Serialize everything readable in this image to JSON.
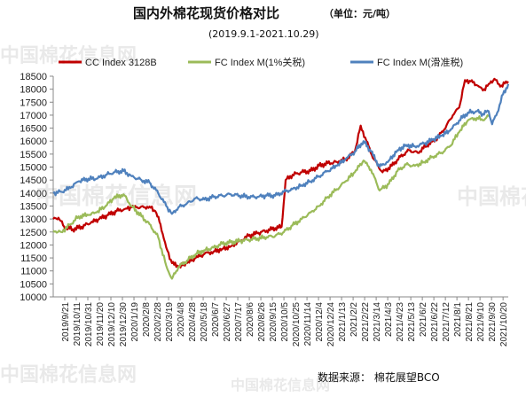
{
  "header": {
    "title": "国内外棉花现货价格对比",
    "unit": "（单位：元/吨）",
    "date_range": "(2019.9.1-2021.10.29)"
  },
  "footer": {
    "source": "数据来源：  棉花展望BCO"
  },
  "watermark": {
    "text": "中国棉花信息网"
  },
  "chart_data": {
    "type": "line",
    "ylim": [
      10000,
      18500
    ],
    "yticks": [
      10000,
      10500,
      11000,
      11500,
      12000,
      12500,
      13000,
      13500,
      14000,
      14500,
      15000,
      15500,
      16000,
      16500,
      17000,
      17500,
      18000,
      18500
    ],
    "xlim": [
      "2019-09-01",
      "2021-10-29"
    ],
    "xtick_labels": [
      "2019/9/21",
      "2019/10/11",
      "2019/10/31",
      "2019/11/20",
      "2019/12/10",
      "2019/12/30",
      "2020/1/19",
      "2020/2/8",
      "2020/2/28",
      "2020/3/19",
      "2020/4/8",
      "2020/4/28",
      "2020/5/18",
      "2020/6/7",
      "2020/6/27",
      "2020/7/17",
      "2020/8/6",
      "2020/8/26",
      "2020/9/15",
      "2020/10/5",
      "2020/10/25",
      "2020/11/14",
      "2020/12/4",
      "2020/12/24",
      "2021/1/13",
      "2021/2/2",
      "2021/2/22",
      "2021/3/14",
      "2021/4/3",
      "2021/4/23",
      "2021/5/13",
      "2021/6/2",
      "2021/6/22",
      "2021/7/12",
      "2021/8/1",
      "2021/8/21",
      "2021/9/10",
      "2021/9/30",
      "2021/10/20"
    ],
    "grid": false,
    "legend_position": "top",
    "series": [
      {
        "name": "CC Index 3128B",
        "color": "#c00000",
        "points": [
          [
            "2019-09-01",
            13000
          ],
          [
            "2019-09-10",
            13050
          ],
          [
            "2019-09-20",
            12700
          ],
          [
            "2019-10-05",
            12600
          ],
          [
            "2019-10-20",
            12700
          ],
          [
            "2019-11-05",
            12850
          ],
          [
            "2019-11-20",
            13000
          ],
          [
            "2019-12-05",
            13150
          ],
          [
            "2019-12-20",
            13300
          ],
          [
            "2020-01-05",
            13400
          ],
          [
            "2020-01-15",
            13450
          ],
          [
            "2020-01-25",
            13450
          ],
          [
            "2020-02-05",
            13450
          ],
          [
            "2020-02-15",
            13480
          ],
          [
            "2020-02-25",
            13300
          ],
          [
            "2020-03-05",
            12800
          ],
          [
            "2020-03-15",
            11900
          ],
          [
            "2020-03-25",
            11300
          ],
          [
            "2020-04-05",
            11150
          ],
          [
            "2020-04-20",
            11300
          ],
          [
            "2020-05-05",
            11500
          ],
          [
            "2020-05-20",
            11650
          ],
          [
            "2020-06-05",
            11750
          ],
          [
            "2020-06-20",
            11850
          ],
          [
            "2020-07-05",
            11950
          ],
          [
            "2020-07-20",
            12150
          ],
          [
            "2020-08-05",
            12350
          ],
          [
            "2020-08-20",
            12450
          ],
          [
            "2020-09-05",
            12550
          ],
          [
            "2020-09-20",
            12650
          ],
          [
            "2020-10-01",
            12700
          ],
          [
            "2020-10-08",
            14500
          ],
          [
            "2020-10-20",
            14700
          ],
          [
            "2020-11-05",
            14800
          ],
          [
            "2020-11-20",
            14850
          ],
          [
            "2020-12-05",
            15050
          ],
          [
            "2020-12-20",
            15150
          ],
          [
            "2021-01-05",
            15200
          ],
          [
            "2021-01-20",
            15300
          ],
          [
            "2021-02-05",
            15600
          ],
          [
            "2021-02-15",
            16600
          ],
          [
            "2021-02-25",
            16000
          ],
          [
            "2021-03-10",
            15300
          ],
          [
            "2021-03-25",
            14800
          ],
          [
            "2021-04-10",
            15050
          ],
          [
            "2021-04-25",
            15400
          ],
          [
            "2021-05-10",
            15650
          ],
          [
            "2021-05-25",
            15550
          ],
          [
            "2021-06-10",
            15850
          ],
          [
            "2021-06-25",
            16050
          ],
          [
            "2021-07-10",
            16450
          ],
          [
            "2021-07-25",
            17000
          ],
          [
            "2021-08-05",
            17300
          ],
          [
            "2021-08-15",
            18350
          ],
          [
            "2021-08-25",
            18300
          ],
          [
            "2021-09-05",
            18150
          ],
          [
            "2021-09-15",
            17950
          ],
          [
            "2021-09-25",
            18200
          ],
          [
            "2021-10-05",
            18400
          ],
          [
            "2021-10-15",
            18100
          ],
          [
            "2021-10-29",
            18300
          ]
        ]
      },
      {
        "name": "FC Index M(1%关税)",
        "color": "#9bbb59",
        "points": [
          [
            "2019-09-01",
            12550
          ],
          [
            "2019-09-15",
            12500
          ],
          [
            "2019-10-01",
            12800
          ],
          [
            "2019-10-15",
            13100
          ],
          [
            "2019-11-01",
            13150
          ],
          [
            "2019-11-15",
            13250
          ],
          [
            "2019-12-01",
            13500
          ],
          [
            "2019-12-15",
            13800
          ],
          [
            "2020-01-01",
            13950
          ],
          [
            "2020-01-15",
            13500
          ],
          [
            "2020-02-01",
            13100
          ],
          [
            "2020-02-15",
            12800
          ],
          [
            "2020-03-01",
            12300
          ],
          [
            "2020-03-15",
            11200
          ],
          [
            "2020-03-25",
            10700
          ],
          [
            "2020-04-05",
            11150
          ],
          [
            "2020-04-20",
            11400
          ],
          [
            "2020-05-05",
            11650
          ],
          [
            "2020-05-20",
            11800
          ],
          [
            "2020-06-05",
            11900
          ],
          [
            "2020-06-20",
            12050
          ],
          [
            "2020-07-05",
            12100
          ],
          [
            "2020-07-20",
            12150
          ],
          [
            "2020-08-05",
            12200
          ],
          [
            "2020-08-20",
            12250
          ],
          [
            "2020-09-05",
            12300
          ],
          [
            "2020-09-20",
            12350
          ],
          [
            "2020-10-05",
            12500
          ],
          [
            "2020-10-20",
            12750
          ],
          [
            "2020-11-05",
            13000
          ],
          [
            "2020-11-20",
            13250
          ],
          [
            "2020-12-05",
            13500
          ],
          [
            "2020-12-20",
            13850
          ],
          [
            "2021-01-05",
            14150
          ],
          [
            "2021-01-20",
            14450
          ],
          [
            "2021-02-05",
            14800
          ],
          [
            "2021-02-20",
            15250
          ],
          [
            "2021-03-05",
            14900
          ],
          [
            "2021-03-20",
            14100
          ],
          [
            "2021-04-05",
            14350
          ],
          [
            "2021-04-20",
            14850
          ],
          [
            "2021-05-05",
            15100
          ],
          [
            "2021-05-20",
            15050
          ],
          [
            "2021-06-05",
            15200
          ],
          [
            "2021-06-20",
            15400
          ],
          [
            "2021-07-05",
            15550
          ],
          [
            "2021-07-20",
            15800
          ],
          [
            "2021-08-05",
            16350
          ],
          [
            "2021-08-20",
            16800
          ],
          [
            "2021-09-05",
            16900
          ],
          [
            "2021-09-15",
            16800
          ],
          [
            "2021-09-25",
            16950
          ]
        ]
      },
      {
        "name": "FC Index M(滑准税)",
        "color": "#4f81bd",
        "points": [
          [
            "2019-09-01",
            14000
          ],
          [
            "2019-09-15",
            14050
          ],
          [
            "2019-10-01",
            14200
          ],
          [
            "2019-10-15",
            14450
          ],
          [
            "2019-11-01",
            14550
          ],
          [
            "2019-11-15",
            14550
          ],
          [
            "2019-12-01",
            14700
          ],
          [
            "2019-12-15",
            14800
          ],
          [
            "2020-01-01",
            14850
          ],
          [
            "2020-01-15",
            14650
          ],
          [
            "2020-02-01",
            14500
          ],
          [
            "2020-02-15",
            14400
          ],
          [
            "2020-03-01",
            14000
          ],
          [
            "2020-03-15",
            13500
          ],
          [
            "2020-03-25",
            13200
          ],
          [
            "2020-04-05",
            13450
          ],
          [
            "2020-04-20",
            13600
          ],
          [
            "2020-05-05",
            13800
          ],
          [
            "2020-05-20",
            13750
          ],
          [
            "2020-06-05",
            13850
          ],
          [
            "2020-06-20",
            13900
          ],
          [
            "2020-07-05",
            13950
          ],
          [
            "2020-07-20",
            13900
          ],
          [
            "2020-08-05",
            13850
          ],
          [
            "2020-08-20",
            13850
          ],
          [
            "2020-09-05",
            13900
          ],
          [
            "2020-09-20",
            13900
          ],
          [
            "2020-10-05",
            14050
          ],
          [
            "2020-10-20",
            14150
          ],
          [
            "2020-11-05",
            14300
          ],
          [
            "2020-11-20",
            14450
          ],
          [
            "2020-12-05",
            14650
          ],
          [
            "2020-12-20",
            14850
          ],
          [
            "2021-01-05",
            15050
          ],
          [
            "2021-01-20",
            15300
          ],
          [
            "2021-02-05",
            15600
          ],
          [
            "2021-02-20",
            16000
          ],
          [
            "2021-03-05",
            15600
          ],
          [
            "2021-03-20",
            15000
          ],
          [
            "2021-04-05",
            15250
          ],
          [
            "2021-04-20",
            15650
          ],
          [
            "2021-05-05",
            15850
          ],
          [
            "2021-05-20",
            15800
          ],
          [
            "2021-06-05",
            15900
          ],
          [
            "2021-06-20",
            16050
          ],
          [
            "2021-07-05",
            16200
          ],
          [
            "2021-07-20",
            16400
          ],
          [
            "2021-08-05",
            16800
          ],
          [
            "2021-08-20",
            17100
          ],
          [
            "2021-09-05",
            17150
          ],
          [
            "2021-09-15",
            17050
          ],
          [
            "2021-09-25",
            17150
          ],
          [
            "2021-10-01",
            16650
          ],
          [
            "2021-10-10",
            17100
          ],
          [
            "2021-10-20",
            17800
          ],
          [
            "2021-10-29",
            18200
          ]
        ]
      }
    ]
  }
}
